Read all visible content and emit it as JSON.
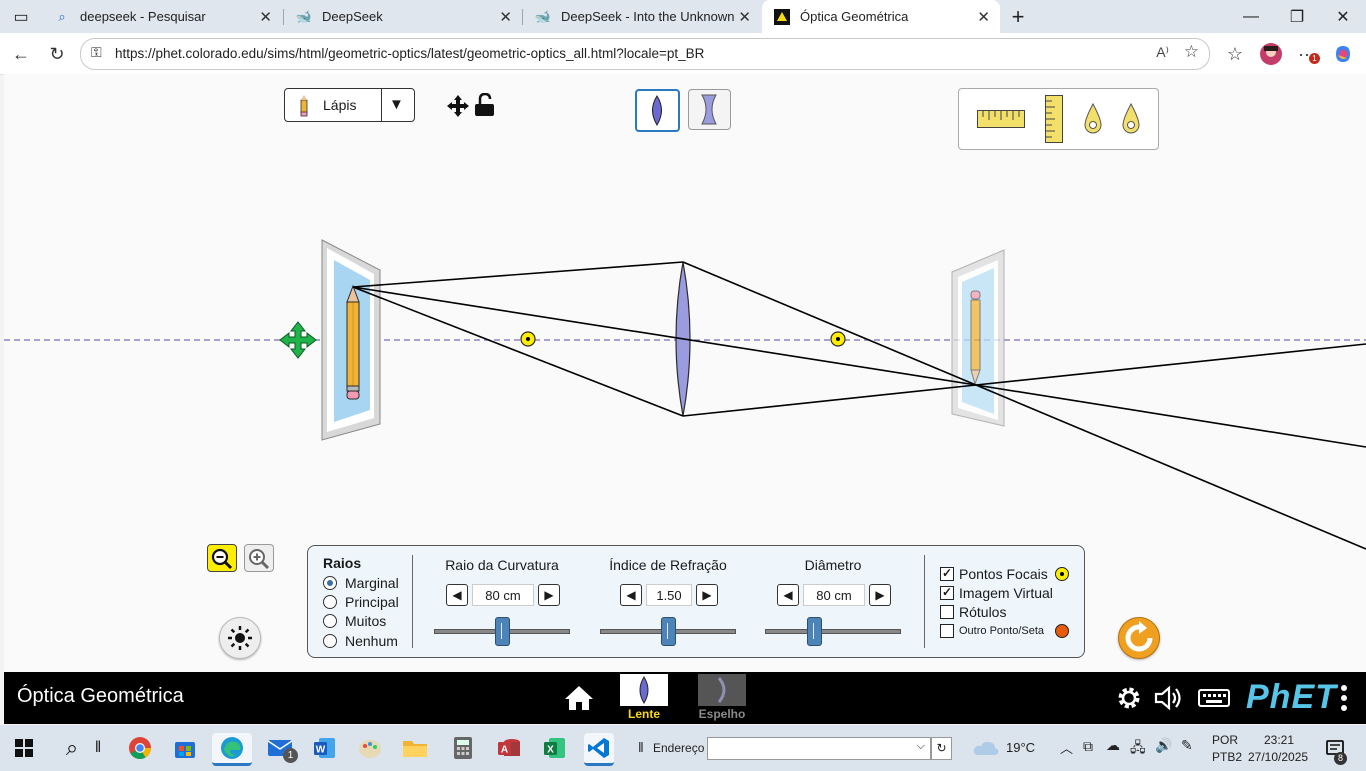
{
  "browser": {
    "tabs": [
      {
        "title": "deepseek - Pesquisar",
        "icon": "search-icon"
      },
      {
        "title": "DeepSeek",
        "icon": "deepseek-whale-icon"
      },
      {
        "title": "DeepSeek - Into the Unknown",
        "icon": "deepseek-whale-icon"
      },
      {
        "title": "Óptica Geométrica",
        "icon": "phet-icon"
      }
    ],
    "url": "https://phet.colorado.edu/sims/html/geometric-optics/latest/geometric-optics_all.html?locale=pt_BR"
  },
  "toolbar": {
    "object_label": "Lápis",
    "tools": [
      "ruler-horizontal-icon",
      "ruler-vertical-icon",
      "focal-point-marker-icon",
      "focal-point-marker-icon"
    ]
  },
  "controls": {
    "rays_title": "Raios",
    "ray_options": [
      "Marginal",
      "Principal",
      "Muitos",
      "Nenhum"
    ],
    "selected_ray": 0,
    "sliders": [
      {
        "label": "Raio da Curvatura",
        "value": "80 cm",
        "fraction": 0.5
      },
      {
        "label": "Índice de Refração",
        "value": "1.50",
        "fraction": 0.5
      },
      {
        "label": "Diâmetro",
        "value": "80 cm",
        "fraction": 0.35
      }
    ],
    "checkboxes": [
      {
        "label": "Pontos Focais",
        "checked": true
      },
      {
        "label": "Imagem Virtual",
        "checked": true
      },
      {
        "label": "Rótulos",
        "checked": false
      },
      {
        "label": "Outro Ponto/Seta",
        "checked": false
      }
    ]
  },
  "nav": {
    "title": "Óptica Geométrica",
    "screens": [
      {
        "label": "Lente",
        "active": true
      },
      {
        "label": "Espelho",
        "active": false
      }
    ],
    "brand": "PhET"
  },
  "taskbar": {
    "address_label": "Endereço",
    "weather": "19°C",
    "lang_top": "POR",
    "lang_bottom": "PTB2",
    "time": "23:21",
    "date": "27/10/2025",
    "mail_badge": "1",
    "notif_badge": "8",
    "menu_badge": "1"
  },
  "colors": {
    "accent": "#2b78c2",
    "lens": "#9b9be0",
    "focal": "#ffee00",
    "screen_active": "#f7d917",
    "reset": "#f0a020"
  }
}
